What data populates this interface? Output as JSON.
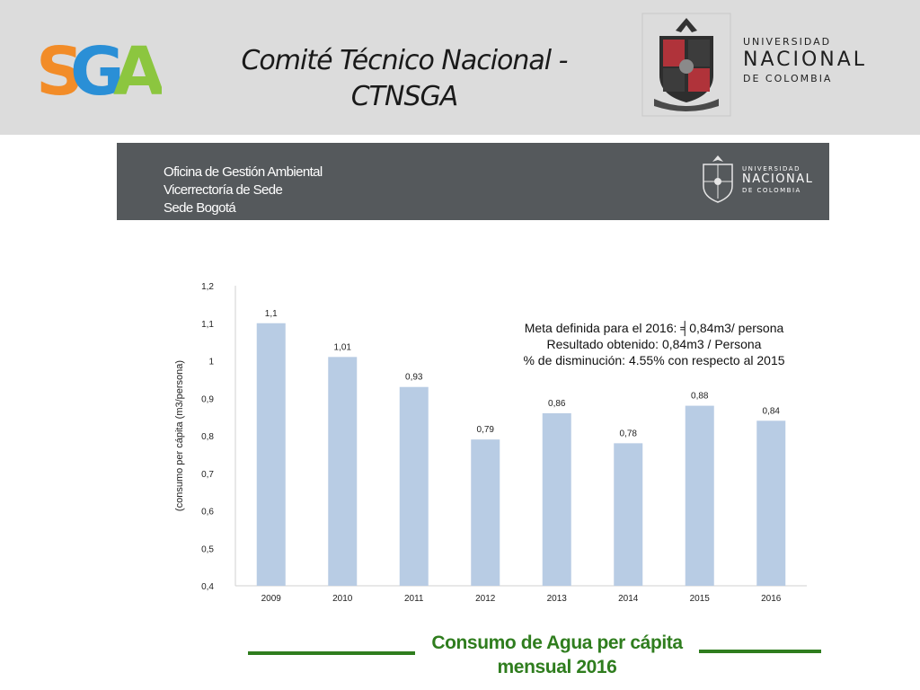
{
  "header": {
    "title_line1": "Comité Técnico Nacional -",
    "title_line2": "CTNSGA",
    "logo_text": "SGA",
    "university": {
      "line1": "UNIVERSIDAD",
      "line2": "NACIONAL",
      "line3": "DE COLOMBIA"
    }
  },
  "banner": {
    "office_line1": "Oficina de Gestión Ambiental",
    "office_line2": "Vicerrectoría de Sede",
    "office_line3": "Sede Bogotá",
    "university": {
      "line1": "UNIVERSIDAD",
      "line2": "NACIONAL",
      "line3": "DE COLOMBIA"
    }
  },
  "annotation": {
    "line1": "Meta definida para el 2016: ╡0,84m3/ persona",
    "line2": "Resultado obtenido: 0,84m3 / Persona",
    "line3": "% de disminución: 4.55% con respecto al 2015"
  },
  "caption": {
    "line1": "Consumo de Agua per cápita",
    "line2": "mensual 2016"
  },
  "colors": {
    "bar": "#b8cce4",
    "caption_green": "#2f7d1e",
    "banner_gray": "#55595c",
    "header_gray": "#dcdcdc"
  },
  "chart_data": {
    "type": "bar",
    "categories": [
      "2009",
      "2010",
      "2011",
      "2012",
      "2013",
      "2014",
      "2015",
      "2016"
    ],
    "values": [
      1.1,
      1.01,
      0.93,
      0.79,
      0.86,
      0.78,
      0.88,
      0.84
    ],
    "data_labels": [
      "1,1",
      "1,01",
      "0,93",
      "0,79",
      "0,86",
      "0,78",
      "0,88",
      "0,84"
    ],
    "title": "",
    "xlabel": "",
    "ylabel": "(consumo per cápita (m3/persona)",
    "ylim": [
      0.4,
      1.2
    ],
    "yticks": [
      0.4,
      0.5,
      0.6,
      0.7,
      0.8,
      0.9,
      1.0,
      1.1,
      1.2
    ],
    "ytick_labels": [
      "0,4",
      "0,5",
      "0,6",
      "0,7",
      "0,8",
      "0,9",
      "1",
      "1,1",
      "1,2"
    ],
    "grid": false,
    "legend": "none"
  }
}
